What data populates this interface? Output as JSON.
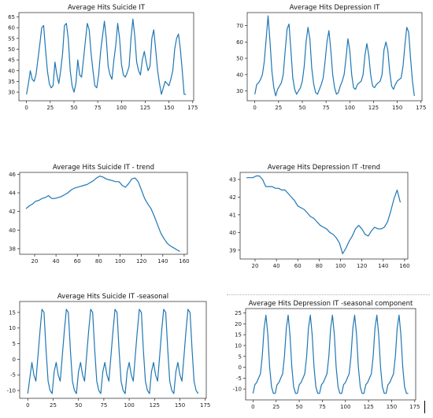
{
  "colors": {
    "series": "#1f77b4",
    "axes": "#222222"
  },
  "chart_data": [
    {
      "type": "line",
      "title": "Average Hits Suicide IT",
      "xlim": [
        -8,
        176
      ],
      "ylim": [
        26,
        67
      ],
      "xticks": [
        0,
        25,
        50,
        75,
        100,
        125,
        150,
        175
      ],
      "yticks": [
        30,
        35,
        40,
        45,
        50,
        55,
        60,
        65
      ],
      "x": [
        0,
        2,
        4,
        6,
        8,
        10,
        12,
        14,
        16,
        18,
        20,
        22,
        24,
        26,
        28,
        30,
        32,
        34,
        36,
        38,
        40,
        42,
        44,
        46,
        48,
        50,
        52,
        54,
        56,
        58,
        60,
        62,
        64,
        66,
        68,
        70,
        72,
        74,
        76,
        78,
        80,
        82,
        84,
        86,
        88,
        90,
        92,
        94,
        96,
        98,
        100,
        102,
        104,
        106,
        108,
        110,
        112,
        114,
        116,
        118,
        120,
        122,
        124,
        126,
        128,
        130,
        132,
        134,
        136,
        138,
        140,
        142,
        144,
        146,
        148,
        150,
        152,
        154,
        156,
        158,
        160,
        162,
        164,
        166,
        168
      ],
      "y": [
        29,
        34,
        40,
        36,
        35,
        38,
        45,
        52,
        60,
        61,
        50,
        40,
        34,
        32,
        33,
        44,
        38,
        34,
        40,
        48,
        61,
        62,
        55,
        40,
        33,
        30,
        34,
        45,
        38,
        37,
        45,
        54,
        62,
        59,
        48,
        40,
        33,
        32,
        38,
        49,
        56,
        63,
        55,
        42,
        38,
        36,
        45,
        52,
        62,
        55,
        43,
        38,
        37,
        39,
        42,
        55,
        64,
        56,
        44,
        40,
        38,
        45,
        49,
        44,
        40,
        42,
        55,
        59,
        50,
        40,
        34,
        29,
        32,
        35,
        34,
        33,
        36,
        40,
        50,
        55,
        57,
        50,
        40,
        29,
        29
      ]
    },
    {
      "type": "line",
      "title": "Average Hits Depression IT",
      "xlim": [
        -8,
        176
      ],
      "ylim": [
        24,
        78
      ],
      "xticks": [
        0,
        25,
        50,
        75,
        100,
        125,
        150,
        175
      ],
      "yticks": [
        30,
        40,
        50,
        60,
        70
      ],
      "x": [
        0,
        2,
        4,
        6,
        8,
        10,
        12,
        14,
        16,
        18,
        20,
        22,
        24,
        26,
        28,
        30,
        32,
        34,
        36,
        38,
        40,
        42,
        44,
        46,
        48,
        50,
        52,
        54,
        56,
        58,
        60,
        62,
        64,
        66,
        68,
        70,
        72,
        74,
        76,
        78,
        80,
        82,
        84,
        86,
        88,
        90,
        92,
        94,
        96,
        98,
        100,
        102,
        104,
        106,
        108,
        110,
        112,
        114,
        116,
        118,
        120,
        122,
        124,
        126,
        128,
        130,
        132,
        134,
        136,
        138,
        140,
        142,
        144,
        146,
        148,
        150,
        152,
        154,
        156,
        158,
        160,
        162,
        164,
        166,
        168
      ],
      "y": [
        28,
        34,
        35,
        37,
        40,
        48,
        62,
        76,
        60,
        42,
        32,
        27,
        31,
        33,
        35,
        40,
        55,
        68,
        71,
        55,
        38,
        31,
        28,
        30,
        32,
        36,
        45,
        60,
        69,
        62,
        44,
        34,
        29,
        28,
        31,
        34,
        38,
        48,
        60,
        67,
        55,
        40,
        32,
        28,
        29,
        33,
        36,
        40,
        50,
        62,
        55,
        40,
        32,
        31,
        34,
        35,
        36,
        40,
        52,
        59,
        52,
        40,
        33,
        32,
        34,
        35,
        36,
        40,
        55,
        60,
        55,
        42,
        33,
        31,
        34,
        36,
        37,
        38,
        45,
        58,
        69,
        66,
        50,
        36,
        27
      ]
    },
    {
      "type": "line",
      "title": "Average Hits Suicide IT - trend",
      "xlim": [
        6,
        163
      ],
      "ylim": [
        37.4,
        46.2
      ],
      "xticks": [
        20,
        40,
        60,
        80,
        100,
        120,
        140,
        160
      ],
      "yticks": [
        38,
        40,
        42,
        44,
        46
      ],
      "x": [
        12,
        15,
        18,
        21,
        24,
        27,
        30,
        33,
        36,
        39,
        42,
        45,
        48,
        51,
        54,
        57,
        60,
        63,
        66,
        69,
        72,
        75,
        78,
        81,
        84,
        87,
        90,
        93,
        96,
        99,
        102,
        105,
        108,
        111,
        114,
        117,
        120,
        123,
        126,
        129,
        132,
        135,
        138,
        141,
        144,
        147,
        150,
        153,
        156
      ],
      "y": [
        42.3,
        42.6,
        42.8,
        43.1,
        43.2,
        43.4,
        43.5,
        43.7,
        43.4,
        43.4,
        43.5,
        43.6,
        43.8,
        44.0,
        44.3,
        44.5,
        44.6,
        44.7,
        44.8,
        44.9,
        45.1,
        45.3,
        45.6,
        45.8,
        45.7,
        45.5,
        45.4,
        45.3,
        45.2,
        45.2,
        44.8,
        44.6,
        45.0,
        45.5,
        45.6,
        45.2,
        44.3,
        43.4,
        42.8,
        42.3,
        41.5,
        40.6,
        39.7,
        39.1,
        38.6,
        38.3,
        38.1,
        37.9,
        37.7
      ]
    },
    {
      "type": "line",
      "title": "Average Hits Depression IT -trend",
      "xlim": [
        6,
        163
      ],
      "ylim": [
        38.5,
        43.4
      ],
      "xticks": [
        20,
        40,
        60,
        80,
        100,
        120,
        140,
        160
      ],
      "yticks": [
        39,
        40,
        41,
        42,
        43
      ],
      "x": [
        12,
        15,
        18,
        21,
        24,
        27,
        30,
        33,
        36,
        39,
        42,
        45,
        48,
        51,
        54,
        57,
        60,
        63,
        66,
        69,
        72,
        75,
        78,
        81,
        84,
        87,
        90,
        93,
        96,
        99,
        102,
        105,
        108,
        111,
        114,
        117,
        120,
        123,
        126,
        129,
        132,
        135,
        138,
        141,
        144,
        147,
        150,
        153,
        156
      ],
      "y": [
        43.1,
        43.1,
        43.1,
        43.2,
        43.2,
        43.0,
        42.6,
        42.6,
        42.6,
        42.5,
        42.5,
        42.4,
        42.4,
        42.2,
        42.0,
        41.8,
        41.5,
        41.4,
        41.3,
        41.1,
        40.9,
        40.8,
        40.6,
        40.4,
        40.3,
        40.2,
        40.0,
        39.9,
        39.7,
        39.4,
        38.8,
        39.1,
        39.5,
        39.8,
        40.2,
        40.4,
        40.2,
        39.9,
        39.8,
        40.1,
        40.3,
        40.2,
        40.2,
        40.3,
        40.6,
        41.2,
        41.9,
        42.4,
        41.7
      ]
    },
    {
      "type": "line",
      "title": "Average Hits Suicide IT -seasonal",
      "xlim": [
        -8,
        176
      ],
      "ylim": [
        -12.5,
        18.5
      ],
      "xticks": [
        0,
        25,
        50,
        75,
        100,
        125,
        150,
        175
      ],
      "yticks": [
        -10,
        -5,
        0,
        5,
        10,
        15
      ],
      "x": [
        0,
        2,
        4,
        6,
        8,
        10,
        12,
        14,
        16,
        18,
        20,
        22,
        24,
        26,
        28,
        30,
        32,
        34,
        36,
        38,
        40,
        42,
        44,
        46,
        48,
        50,
        52,
        54,
        56,
        58,
        60,
        62,
        64,
        66,
        68,
        70,
        72,
        74,
        76,
        78,
        80,
        82,
        84,
        86,
        88,
        90,
        92,
        94,
        96,
        98,
        100,
        102,
        104,
        106,
        108,
        110,
        112,
        114,
        116,
        118,
        120,
        122,
        124,
        126,
        128,
        130,
        132,
        134,
        136,
        138,
        140,
        142,
        144,
        146,
        148,
        150,
        152,
        154,
        156,
        158,
        160,
        162,
        164,
        166,
        168
      ],
      "y": [
        -11,
        -6,
        -1,
        -5,
        -7,
        1,
        9,
        16,
        15,
        3,
        -7,
        -10,
        -11,
        -4,
        -1,
        -5,
        -7,
        1,
        9,
        16,
        15,
        3,
        -7,
        -10,
        -11,
        -4,
        -1,
        -5,
        -7,
        1,
        9,
        16,
        15,
        3,
        -7,
        -10,
        -11,
        -4,
        -1,
        -5,
        -7,
        1,
        9,
        16,
        15,
        3,
        -7,
        -10,
        -11,
        -4,
        -1,
        -5,
        -7,
        1,
        9,
        16,
        15,
        3,
        -7,
        -10,
        -11,
        -4,
        -1,
        -5,
        -7,
        1,
        9,
        16,
        15,
        3,
        -7,
        -10,
        -11,
        -4,
        -1,
        -5,
        -7,
        1,
        9,
        16,
        15,
        3,
        -7,
        -10,
        -11
      ]
    },
    {
      "type": "line",
      "title": "Average Hits Depression IT -seasonal component",
      "xlim": [
        -8,
        176
      ],
      "ylim": [
        -15,
        27
      ],
      "xticks": [
        0,
        25,
        50,
        75,
        100,
        125,
        150,
        175
      ],
      "yticks": [
        -10,
        -5,
        0,
        5,
        10,
        15,
        20,
        25
      ],
      "x": [
        0,
        2,
        4,
        6,
        8,
        10,
        12,
        14,
        16,
        18,
        20,
        22,
        24,
        26,
        28,
        30,
        32,
        34,
        36,
        38,
        40,
        42,
        44,
        46,
        48,
        50,
        52,
        54,
        56,
        58,
        60,
        62,
        64,
        66,
        68,
        70,
        72,
        74,
        76,
        78,
        80,
        82,
        84,
        86,
        88,
        90,
        92,
        94,
        96,
        98,
        100,
        102,
        104,
        106,
        108,
        110,
        112,
        114,
        116,
        118,
        120,
        122,
        124,
        126,
        128,
        130,
        132,
        134,
        136,
        138,
        140,
        142,
        144,
        146,
        148,
        150,
        152,
        154,
        156,
        158,
        160,
        162,
        164,
        166,
        168
      ],
      "y": [
        -12,
        -8,
        -7,
        -5,
        -3,
        5,
        18,
        24,
        15,
        0,
        -9,
        -12,
        -12,
        -8,
        -7,
        -5,
        -3,
        5,
        18,
        24,
        15,
        0,
        -9,
        -12,
        -12,
        -8,
        -7,
        -5,
        -3,
        5,
        18,
        24,
        15,
        0,
        -9,
        -12,
        -12,
        -8,
        -7,
        -5,
        -3,
        5,
        18,
        24,
        15,
        0,
        -9,
        -12,
        -12,
        -8,
        -7,
        -5,
        -3,
        5,
        18,
        24,
        15,
        0,
        -9,
        -12,
        -12,
        -8,
        -7,
        -5,
        -3,
        5,
        18,
        24,
        15,
        0,
        -9,
        -12,
        -12,
        -8,
        -7,
        -5,
        -3,
        5,
        18,
        24,
        15,
        0,
        -9,
        -12,
        -12
      ]
    }
  ]
}
